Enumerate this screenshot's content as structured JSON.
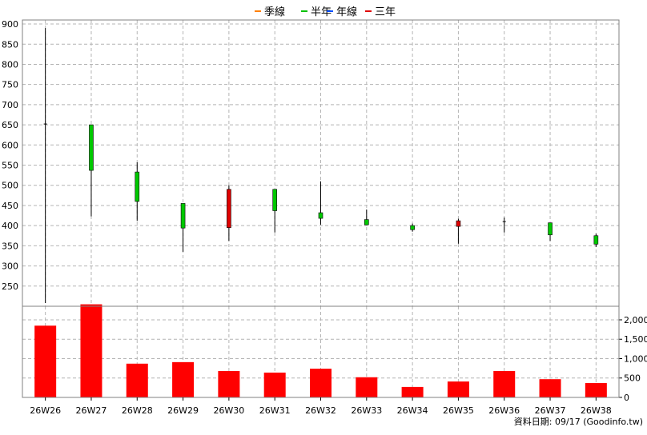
{
  "legend": [
    {
      "label": "季線",
      "color": "#ff8000"
    },
    {
      "label": "半年",
      "color": "#00c000"
    },
    {
      "label": "年線",
      "color": "#0050ff"
    },
    {
      "label": "三年",
      "color": "#e00000"
    }
  ],
  "footer": {
    "text": "資料日期: 09/17  (Goodinfo.tw)"
  },
  "colors": {
    "up": "#e00000",
    "down": "#00c800",
    "volume": "#ff0000",
    "grid": "#b4b4b4",
    "axis": "#000000"
  },
  "chart_data": [
    {
      "type": "candlestick",
      "title": "",
      "categories": [
        "26W26",
        "26W27",
        "26W28",
        "26W29",
        "26W30",
        "26W31",
        "26W32",
        "26W33",
        "26W34",
        "26W35",
        "26W36",
        "26W37",
        "26W38"
      ],
      "ohlc": [
        {
          "open": 652,
          "high": 890,
          "low": 208,
          "close": 652
        },
        {
          "open": 650,
          "high": 650,
          "low": 423,
          "close": 537
        },
        {
          "open": 533,
          "high": 557,
          "low": 412,
          "close": 460
        },
        {
          "open": 455,
          "high": 455,
          "low": 335,
          "close": 394
        },
        {
          "open": 395,
          "high": 500,
          "low": 362,
          "close": 490
        },
        {
          "open": 490,
          "high": 490,
          "low": 383,
          "close": 437
        },
        {
          "open": 432,
          "high": 510,
          "low": 402,
          "close": 418
        },
        {
          "open": 415,
          "high": 440,
          "low": 403,
          "close": 402
        },
        {
          "open": 400,
          "high": 405,
          "low": 385,
          "close": 390
        },
        {
          "open": 398,
          "high": 417,
          "low": 355,
          "close": 412
        },
        {
          "open": 410,
          "high": 420,
          "low": 383,
          "close": 410
        },
        {
          "open": 407,
          "high": 407,
          "low": 362,
          "close": 377
        },
        {
          "open": 375,
          "high": 380,
          "low": 347,
          "close": 354
        }
      ],
      "ylim": [
        200,
        910
      ],
      "yticks": [
        250,
        300,
        350,
        400,
        450,
        500,
        550,
        600,
        650,
        700,
        750,
        800,
        850,
        900
      ]
    },
    {
      "type": "bar",
      "title": "",
      "categories": [
        "26W26",
        "26W27",
        "26W28",
        "26W29",
        "26W30",
        "26W31",
        "26W32",
        "26W33",
        "26W34",
        "26W35",
        "26W36",
        "26W37",
        "26W38"
      ],
      "values": [
        1850,
        2400,
        870,
        910,
        680,
        640,
        740,
        520,
        270,
        410,
        680,
        470,
        370
      ],
      "ylim": [
        0,
        2350
      ],
      "yticks": [
        0,
        500,
        1000,
        1500,
        2000
      ],
      "ytick_labels": [
        "0",
        "500",
        "1,000",
        "1,500",
        "2,000"
      ]
    }
  ]
}
